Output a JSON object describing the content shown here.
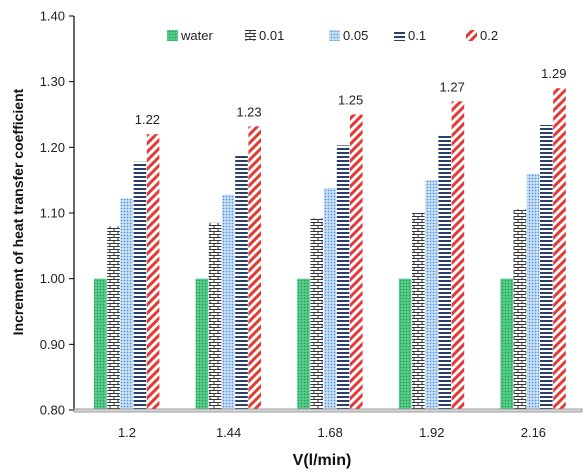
{
  "chart_data": {
    "type": "bar",
    "title": "",
    "xlabel": "V(l/min)",
    "ylabel": "Increment of heat transfer coefficient",
    "categories": [
      "1.2",
      "1.44",
      "1.68",
      "1.92",
      "2.16"
    ],
    "ylim": [
      0.8,
      1.4
    ],
    "yticks": [
      "0.80",
      "0.90",
      "1.00",
      "1.10",
      "1.20",
      "1.30",
      "1.40"
    ],
    "grid": false,
    "legend_position": "top",
    "series": [
      {
        "name": "water",
        "values": [
          1.0,
          1.0,
          1.0,
          1.0,
          1.0
        ],
        "color": "#3dbf78",
        "pattern": "dots"
      },
      {
        "name": "0.01",
        "values": [
          1.08,
          1.085,
          1.092,
          1.1,
          1.106
        ],
        "color": "#333333",
        "pattern": "brick"
      },
      {
        "name": "0.05",
        "values": [
          1.122,
          1.128,
          1.138,
          1.15,
          1.16
        ],
        "color": "#5aa0e0",
        "pattern": "dots-blue"
      },
      {
        "name": "0.1",
        "values": [
          1.178,
          1.188,
          1.203,
          1.218,
          1.234
        ],
        "color": "#2b3f6b",
        "pattern": "hlines"
      },
      {
        "name": "0.2",
        "values": [
          1.22,
          1.232,
          1.25,
          1.27,
          1.29
        ],
        "color": "#e53935",
        "pattern": "diag"
      }
    ],
    "data_labels": {
      "series": "0.2",
      "values": [
        "1.22",
        "1.23",
        "1.25",
        "1.27",
        "1.29"
      ]
    }
  }
}
